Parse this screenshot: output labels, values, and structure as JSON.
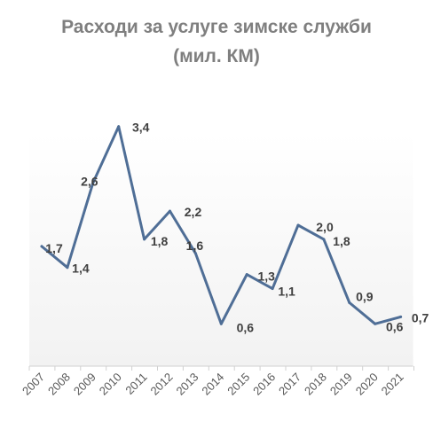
{
  "chart_data": {
    "type": "line",
    "title": "Расходи за услуге зимске служби",
    "subtitle": "(мил. КМ)",
    "categories": [
      "2007",
      "2008",
      "2009",
      "2010",
      "2011",
      "2012",
      "2013",
      "2014",
      "2015",
      "2016",
      "2017",
      "2018",
      "2019",
      "2020",
      "2021"
    ],
    "series": [
      {
        "values": [
          1.7,
          1.4,
          2.6,
          3.4,
          1.8,
          2.2,
          1.6,
          0.6,
          1.3,
          1.1,
          2.0,
          1.8,
          0.9,
          0.6,
          0.7
        ],
        "labels": [
          "1,7",
          "1,4",
          "2,6",
          "3,4",
          "1,8",
          "2,2",
          "1,6",
          "0,6",
          "1,3",
          "1,1",
          "2,0",
          "1,8",
          "0,9",
          "0,6",
          "0,7"
        ],
        "color": "#4f6e96"
      }
    ],
    "grid": false,
    "legend": "none"
  }
}
